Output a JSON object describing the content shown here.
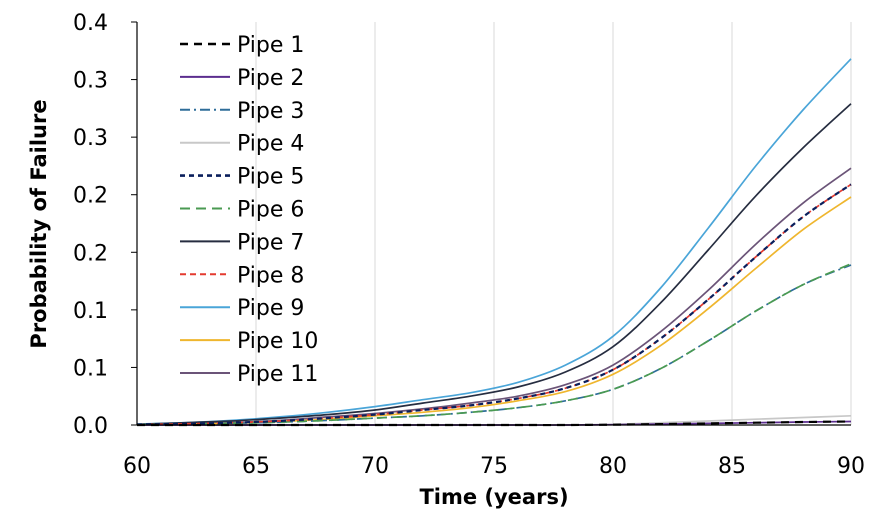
{
  "chart_data": {
    "type": "line",
    "title": "",
    "xlabel": "Time (years)",
    "ylabel": "Probability of Failure",
    "xlim": [
      60,
      90
    ],
    "ylim": [
      0,
      0.35
    ],
    "x_ticks": [
      "60",
      "65",
      "70",
      "75",
      "80",
      "85",
      "90"
    ],
    "y_ticks": [
      "0.0",
      "0.1",
      "0.1",
      "0.2",
      "0.2",
      "0.3",
      "0.3",
      "0.4"
    ],
    "grid": "vertical",
    "legend_position": "top-left",
    "x": [
      60,
      62,
      64,
      66,
      68,
      70,
      72,
      74,
      76,
      78,
      80,
      82,
      84,
      86,
      88,
      90
    ],
    "series": [
      {
        "name": "Pipe 1",
        "color": "#000000",
        "dash": "8,6",
        "values": [
          0,
          0,
          0,
          0,
          0,
          0,
          0,
          0,
          0,
          0,
          0.0003,
          0.0008,
          0.0014,
          0.002,
          0.0026,
          0.003
        ]
      },
      {
        "name": "Pipe 2",
        "color": "#5b2d8e",
        "dash": "",
        "values": [
          0,
          0,
          0,
          0,
          0,
          0,
          0,
          0,
          0,
          0,
          0.0003,
          0.0008,
          0.0014,
          0.002,
          0.0026,
          0.003
        ]
      },
      {
        "name": "Pipe 3",
        "color": "#2e6d99",
        "dash": "10,4,2,4",
        "values": [
          0.0003,
          0.0008,
          0.0015,
          0.0025,
          0.004,
          0.006,
          0.008,
          0.011,
          0.015,
          0.021,
          0.031,
          0.049,
          0.073,
          0.099,
          0.122,
          0.139
        ]
      },
      {
        "name": "Pipe 4",
        "color": "#c8c8c8",
        "dash": "",
        "values": [
          0,
          0,
          0,
          0,
          0,
          0,
          0,
          0,
          0,
          0,
          0.0005,
          0.002,
          0.0035,
          0.005,
          0.0065,
          0.008
        ]
      },
      {
        "name": "Pipe 5",
        "color": "#0a1f5c",
        "dash": "5,4",
        "values": [
          0.0004,
          0.001,
          0.002,
          0.0035,
          0.006,
          0.009,
          0.013,
          0.017,
          0.023,
          0.032,
          0.048,
          0.075,
          0.109,
          0.146,
          0.181,
          0.209
        ]
      },
      {
        "name": "Pipe 6",
        "color": "#4a9a52",
        "dash": "10,6",
        "values": [
          0.0003,
          0.0008,
          0.0015,
          0.0025,
          0.004,
          0.006,
          0.008,
          0.011,
          0.015,
          0.021,
          0.031,
          0.049,
          0.073,
          0.099,
          0.122,
          0.14
        ]
      },
      {
        "name": "Pipe 7",
        "color": "#262d40",
        "dash": "",
        "values": [
          0.0006,
          0.002,
          0.0035,
          0.006,
          0.009,
          0.013,
          0.019,
          0.025,
          0.033,
          0.046,
          0.068,
          0.106,
          0.152,
          0.199,
          0.241,
          0.279
        ]
      },
      {
        "name": "Pipe 8",
        "color": "#e43a2f",
        "dash": "6,4",
        "values": [
          0.0004,
          0.001,
          0.002,
          0.0035,
          0.006,
          0.009,
          0.013,
          0.017,
          0.023,
          0.032,
          0.048,
          0.075,
          0.109,
          0.146,
          0.181,
          0.209
        ]
      },
      {
        "name": "Pipe 9",
        "color": "#4aa5d8",
        "dash": "",
        "values": [
          0.0008,
          0.002,
          0.004,
          0.007,
          0.011,
          0.016,
          0.022,
          0.028,
          0.037,
          0.052,
          0.077,
          0.119,
          0.171,
          0.225,
          0.274,
          0.318
        ]
      },
      {
        "name": "Pipe 10",
        "color": "#efb62e",
        "dash": "",
        "values": [
          0.0003,
          0.0008,
          0.0015,
          0.003,
          0.005,
          0.008,
          0.011,
          0.015,
          0.021,
          0.029,
          0.044,
          0.069,
          0.101,
          0.136,
          0.17,
          0.198
        ]
      },
      {
        "name": "Pipe 11",
        "color": "#6b5478",
        "dash": "",
        "values": [
          0.0004,
          0.001,
          0.002,
          0.004,
          0.007,
          0.01,
          0.014,
          0.019,
          0.025,
          0.035,
          0.052,
          0.081,
          0.117,
          0.157,
          0.193,
          0.223
        ]
      }
    ]
  }
}
